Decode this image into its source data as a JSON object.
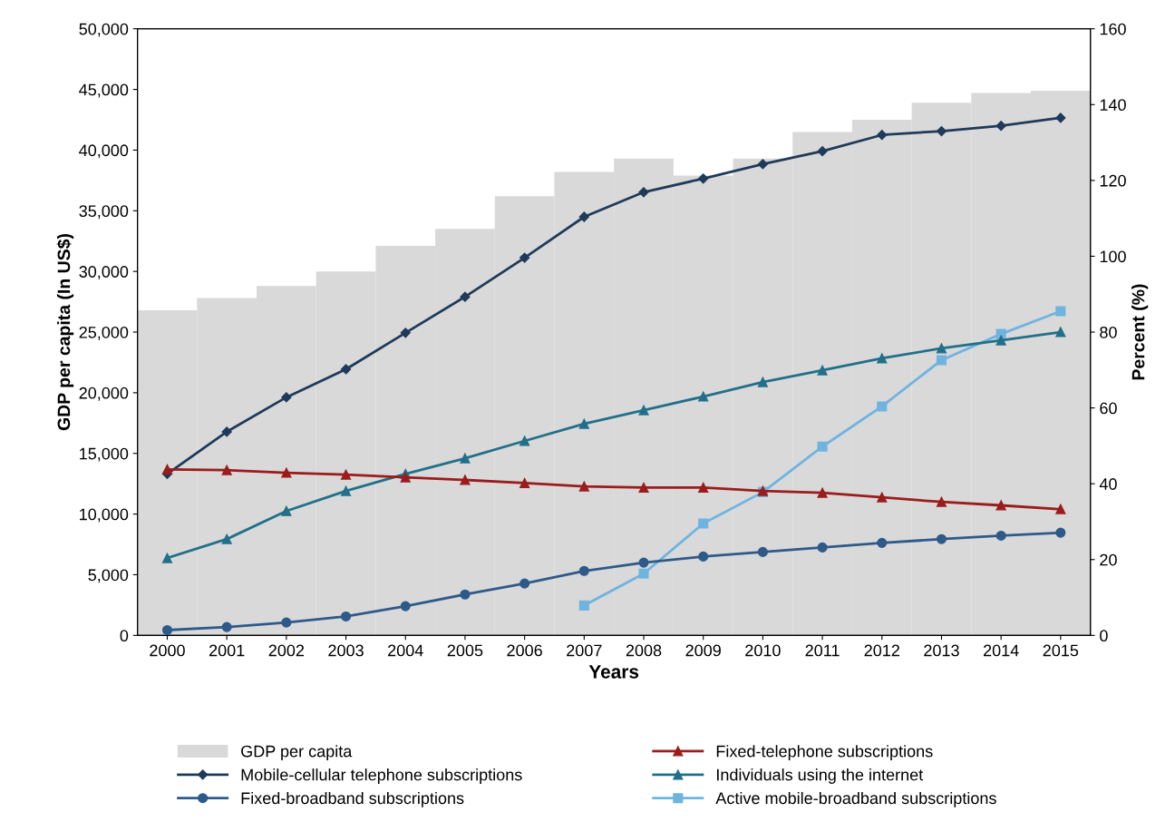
{
  "chart_data": {
    "type": "bar",
    "xlabel": "Years",
    "ylabel": "GDP per capita (In US$)",
    "y2label": "Percent (%)",
    "categories": [
      "2000",
      "2001",
      "2002",
      "2003",
      "2004",
      "2005",
      "2006",
      "2007",
      "2008",
      "2009",
      "2010",
      "2011",
      "2012",
      "2013",
      "2014",
      "2015"
    ],
    "series": [
      {
        "name": "GDP per capita",
        "color": "#d9d9d9",
        "values": [
          26800,
          27800,
          28800,
          30000,
          32100,
          33500,
          36200,
          38200,
          39300,
          37900,
          39300,
          41500,
          42500,
          43900,
          44700,
          44900
        ]
      },
      {
        "name": "Fixed-telephone subscriptions",
        "type": "line",
        "axis": "y2",
        "marker": "triangle",
        "color": "#9b1c1c",
        "values": [
          43.8,
          43.6,
          42.9,
          42.4,
          41.7,
          41.0,
          40.2,
          39.3,
          39.0,
          39.0,
          38.1,
          37.6,
          36.4,
          35.2,
          34.3,
          33.3
        ]
      },
      {
        "name": "Mobile-cellular telephone subscriptions",
        "type": "line",
        "axis": "y2",
        "marker": "diamond",
        "color": "#1f3a5a",
        "values": [
          42.6,
          53.7,
          62.8,
          70.2,
          79.8,
          89.3,
          99.6,
          110.4,
          116.9,
          120.5,
          124.3,
          127.7,
          132.0,
          133.0,
          134.4,
          136.5
        ]
      },
      {
        "name": "Individuals using the internet",
        "type": "line",
        "axis": "y2",
        "marker": "triangle",
        "color": "#21708a",
        "values": [
          20.4,
          25.4,
          32.8,
          38.1,
          42.6,
          46.7,
          51.3,
          55.8,
          59.4,
          63.0,
          66.8,
          69.9,
          73.1,
          75.7,
          77.8,
          80.0
        ]
      },
      {
        "name": "Fixed-broadband subscriptions",
        "type": "line",
        "axis": "y2",
        "marker": "circle",
        "color": "#2e5a8a",
        "values": [
          1.4,
          2.2,
          3.4,
          5.0,
          7.7,
          10.8,
          13.7,
          17.0,
          19.2,
          20.8,
          22.0,
          23.2,
          24.4,
          25.4,
          26.3,
          27.1
        ]
      },
      {
        "name": "Active mobile-broadband subscriptions",
        "type": "line",
        "axis": "y2",
        "marker": "square",
        "color": "#6fb4e0",
        "values": [
          null,
          null,
          null,
          null,
          null,
          null,
          null,
          7.9,
          16.3,
          29.5,
          37.8,
          49.8,
          60.4,
          72.6,
          79.5,
          85.5
        ]
      }
    ],
    "ylim": [
      0,
      50000
    ],
    "yticks": [
      0,
      {
        "value": 5000,
        "label": "5,000"
      },
      {
        "value": 10000,
        "label": "10,000"
      },
      {
        "value": 15000,
        "label": "15,000"
      },
      {
        "value": 20000,
        "label": "20,000"
      },
      {
        "value": 25000,
        "label": "25,000"
      },
      {
        "value": 30000,
        "label": "30,000"
      },
      {
        "value": 35000,
        "label": "35,000"
      },
      {
        "value": 40000,
        "label": "40,000"
      },
      {
        "value": 45000,
        "label": "45,000"
      },
      {
        "value": 50000,
        "label": "50,000"
      }
    ],
    "y2lim": [
      0,
      160
    ],
    "y2ticks": [
      0,
      20,
      40,
      60,
      80,
      100,
      120,
      140,
      160
    ],
    "grid": false,
    "legend": "bottom",
    "line_style": "solid"
  }
}
